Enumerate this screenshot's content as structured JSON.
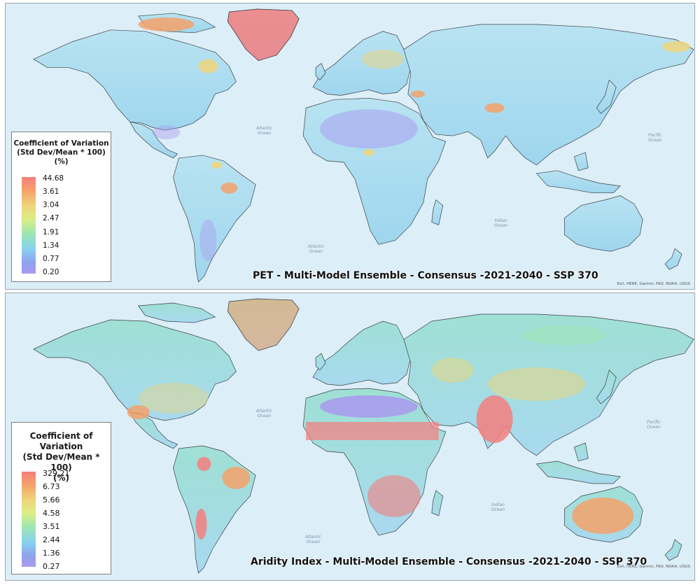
{
  "maps": [
    {
      "title": "PET - Multi-Model Ensemble - Consensus -2021-2040 - SSP 370",
      "legend": {
        "title_line1": "Coefficient of Variation",
        "title_line2": "(Std Dev/Mean * 100)",
        "title_line3": "(%)",
        "ticks": [
          "44.68",
          "3.61",
          "3.04",
          "2.47",
          "1.91",
          "1.34",
          "0.77",
          "0.20"
        ]
      },
      "attribution": "Esri, HERE, Garmin, FAO, NOAA, USGS",
      "ocean_labels": {
        "atlantic_north": "Atlantic\nOcean",
        "atlantic_south": "Atlantic\nOcean",
        "pacific": "Pacific\nOcean",
        "indian": "Indian\nOcean"
      }
    },
    {
      "title": "Aridity Index - Multi-Model Ensemble - Consensus -2021-2040 - SSP 370",
      "legend": {
        "title_line1": "Coefficient of Variation",
        "title_line2": "(Std Dev/Mean * 100)",
        "title_line3": "(%)",
        "ticks": [
          "329.21",
          "6.73",
          "5.66",
          "4.58",
          "3.51",
          "2.44",
          "1.36",
          "0.27"
        ]
      },
      "attribution": "Esri, HERE, Garmin, FAO, NOAA, USGS",
      "ocean_labels": {
        "atlantic_north": "Atlantic\nOcean",
        "atlantic_south": "Atlantic\nOcean",
        "pacific": "Pacific\nOcean",
        "indian": "Indian\nOcean"
      }
    }
  ],
  "colors": {
    "ocean": "#dceef8",
    "land_base": "#a9dcef",
    "high": "#f47f7f",
    "mid_high": "#efd57a",
    "mid": "#9fe6b0",
    "low": "#a99aef",
    "border": "#3a3f44"
  }
}
